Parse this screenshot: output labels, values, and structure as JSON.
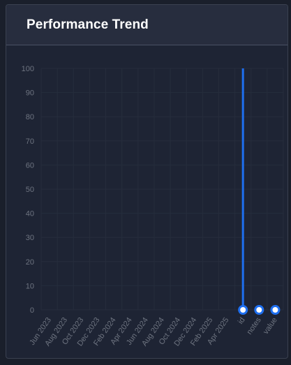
{
  "card": {
    "title": "Performance Trend"
  },
  "chart_data": {
    "type": "line",
    "title": "Performance Trend",
    "categories": [
      "Jun 2023",
      "Aug 2023",
      "Oct 2023",
      "Dec 2023",
      "Feb 2024",
      "Apr 2024",
      "Jun 2024",
      "Aug 2024",
      "Oct 2024",
      "Dec 2024",
      "Feb 2025",
      "Apr 2025",
      "id",
      "notes",
      "value"
    ],
    "series": [
      {
        "values": [
          null,
          null,
          null,
          null,
          null,
          null,
          null,
          null,
          null,
          null,
          null,
          null,
          0,
          0,
          0
        ]
      }
    ],
    "spike": {
      "category": "id",
      "from": 0,
      "to": 100
    },
    "ylim": [
      0,
      100
    ],
    "yticks": [
      0,
      10,
      20,
      30,
      40,
      50,
      60,
      70,
      80,
      90,
      100
    ],
    "grid": true,
    "colors": {
      "line": "#1e6ff0",
      "marker_fill": "#ffffff",
      "tick_label": "#6e7480",
      "grid": "#262d3c"
    }
  }
}
